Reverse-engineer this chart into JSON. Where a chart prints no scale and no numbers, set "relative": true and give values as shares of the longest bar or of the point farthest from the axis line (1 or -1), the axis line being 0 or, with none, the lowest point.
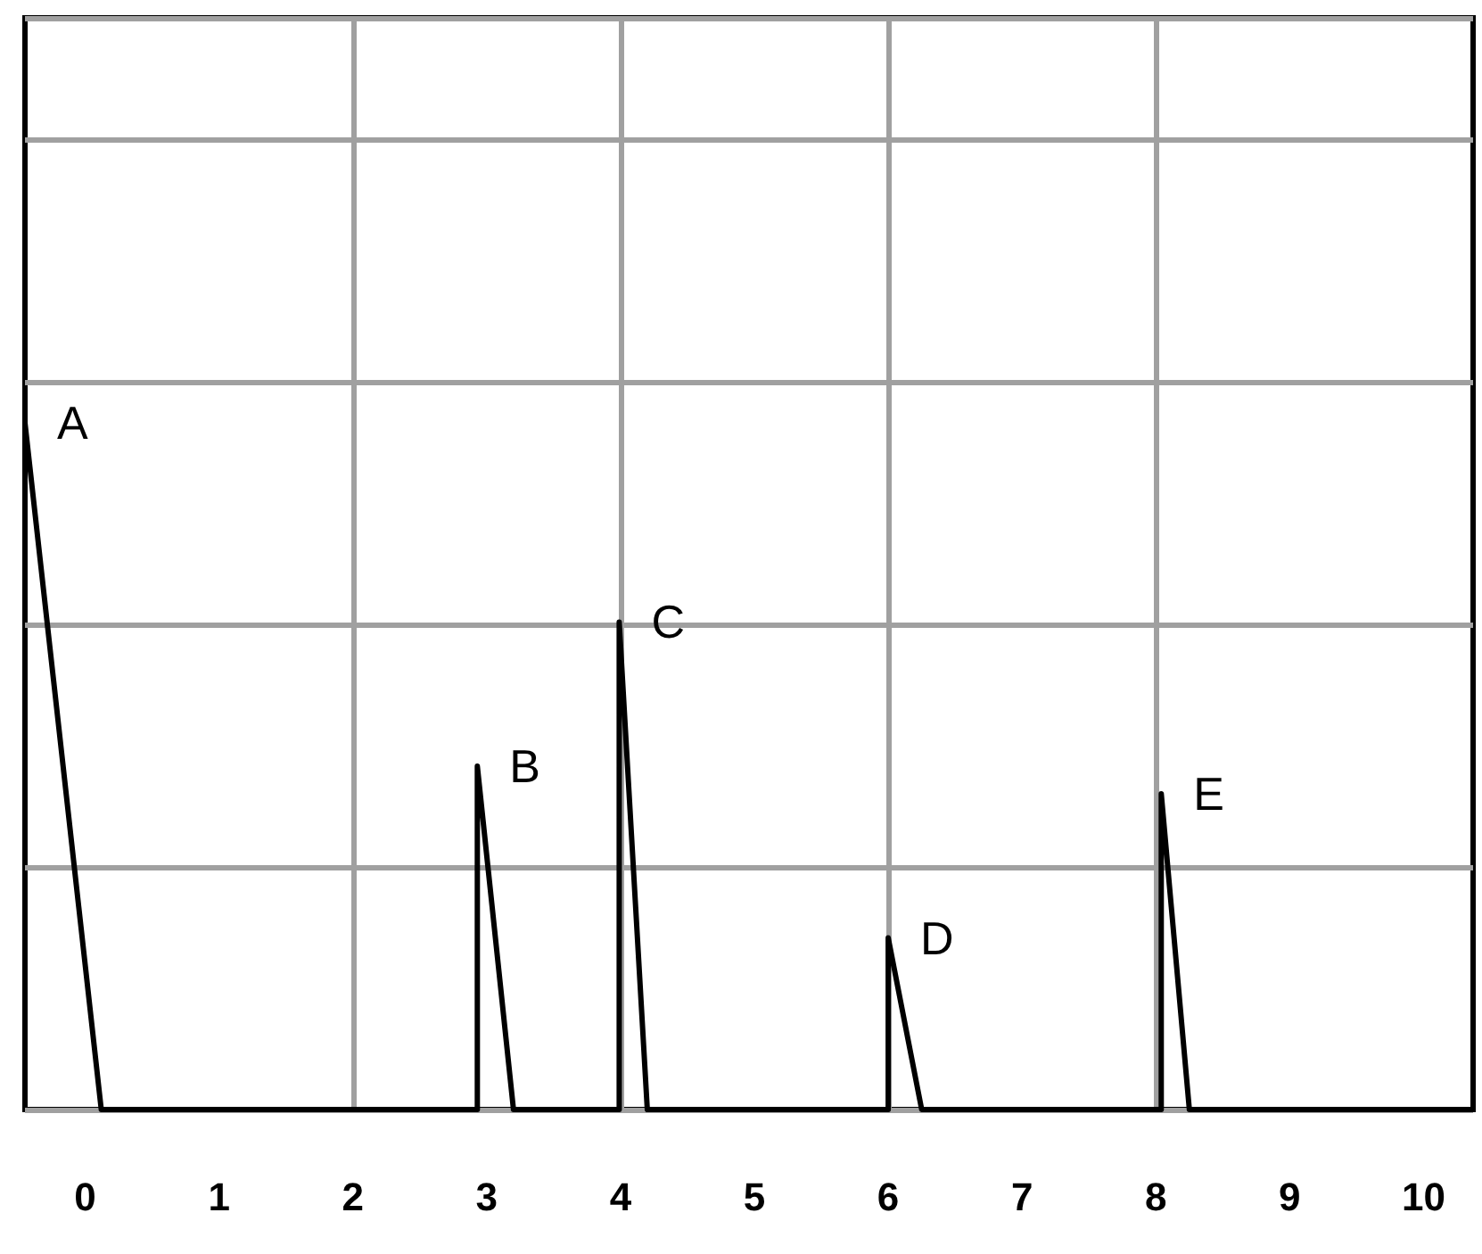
{
  "chart_data": {
    "type": "line",
    "relative": true,
    "x": [
      -0.45,
      0.12,
      2.93,
      2.93,
      3.2,
      3.99,
      3.99,
      4.2,
      6.0,
      6.0,
      6.25,
      8.04,
      8.04,
      8.25,
      10.37
    ],
    "series": [
      {
        "color": "#000000",
        "values": [
          1,
          0,
          0,
          0.5,
          0,
          0,
          0.71,
          0,
          0,
          0.25,
          0,
          0,
          0.46,
          0,
          0
        ]
      }
    ],
    "xlim": [
      -0.45,
      10.37
    ],
    "xticks": [
      0,
      1,
      2,
      3,
      4,
      5,
      6,
      7,
      8,
      9,
      10
    ],
    "annotations": [
      {
        "text": "A",
        "x": -0.45,
        "y": 1
      },
      {
        "text": "B",
        "x": 2.93,
        "y": 0.5
      },
      {
        "text": "C",
        "x": 3.99,
        "y": 0.71
      },
      {
        "text": "D",
        "x": 6.0,
        "y": 0.25
      },
      {
        "text": "E",
        "x": 8.04,
        "y": 0.46
      }
    ],
    "grid": true,
    "marker": "none",
    "line_style": "solid"
  }
}
